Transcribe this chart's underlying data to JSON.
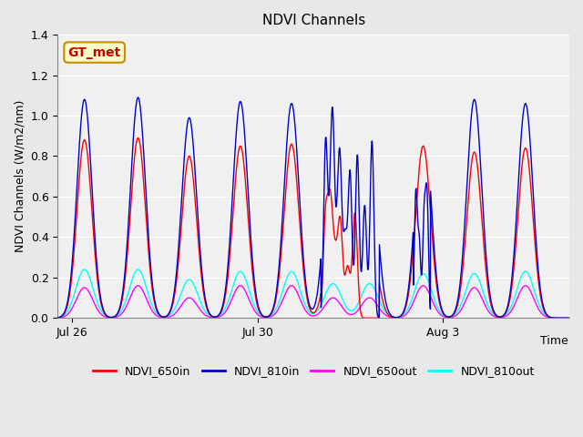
{
  "title": "NDVI Channels",
  "xlabel": "Time",
  "ylabel": "NDVI Channels (W/m2/nm)",
  "ylim": [
    0.0,
    1.4
  ],
  "xlim_start": 0,
  "xlim_end": 10.5,
  "xtick_positions": [
    0.3,
    4.1,
    7.9
  ],
  "xtick_labels": [
    "Jul 26",
    "Jul 30",
    "Aug 3"
  ],
  "colors": {
    "NDVI_650in": "#FF0000",
    "NDVI_810in": "#0000CC",
    "NDVI_650out": "#FF00FF",
    "NDVI_810out": "#00FFFF"
  },
  "background_color": "#E8E8E8",
  "plot_bg": "#F0F0F0",
  "annotation_text": "GT_met",
  "annotation_bg": "#FFFFCC",
  "annotation_border": "#CC8800",
  "annotation_text_color": "#CC0000",
  "grid_color": "#FFFFFF",
  "num_cycles": 9,
  "peak_650in": [
    0.88,
    0.89,
    0.8,
    0.85,
    0.86,
    0.46,
    0.42,
    0.85,
    0.82,
    0.84
  ],
  "peak_810in": [
    1.08,
    1.09,
    0.99,
    1.07,
    1.06,
    1.13,
    0.88,
    1.04,
    1.08,
    1.06
  ],
  "peak_650out": [
    0.15,
    0.16,
    0.1,
    0.16,
    0.16,
    0.1,
    0.1,
    0.16,
    0.15,
    0.16
  ],
  "peak_810out": [
    0.24,
    0.24,
    0.19,
    0.23,
    0.23,
    0.17,
    0.17,
    0.22,
    0.22,
    0.23
  ],
  "figsize": [
    6.4,
    4.8
  ],
  "dpi": 100
}
